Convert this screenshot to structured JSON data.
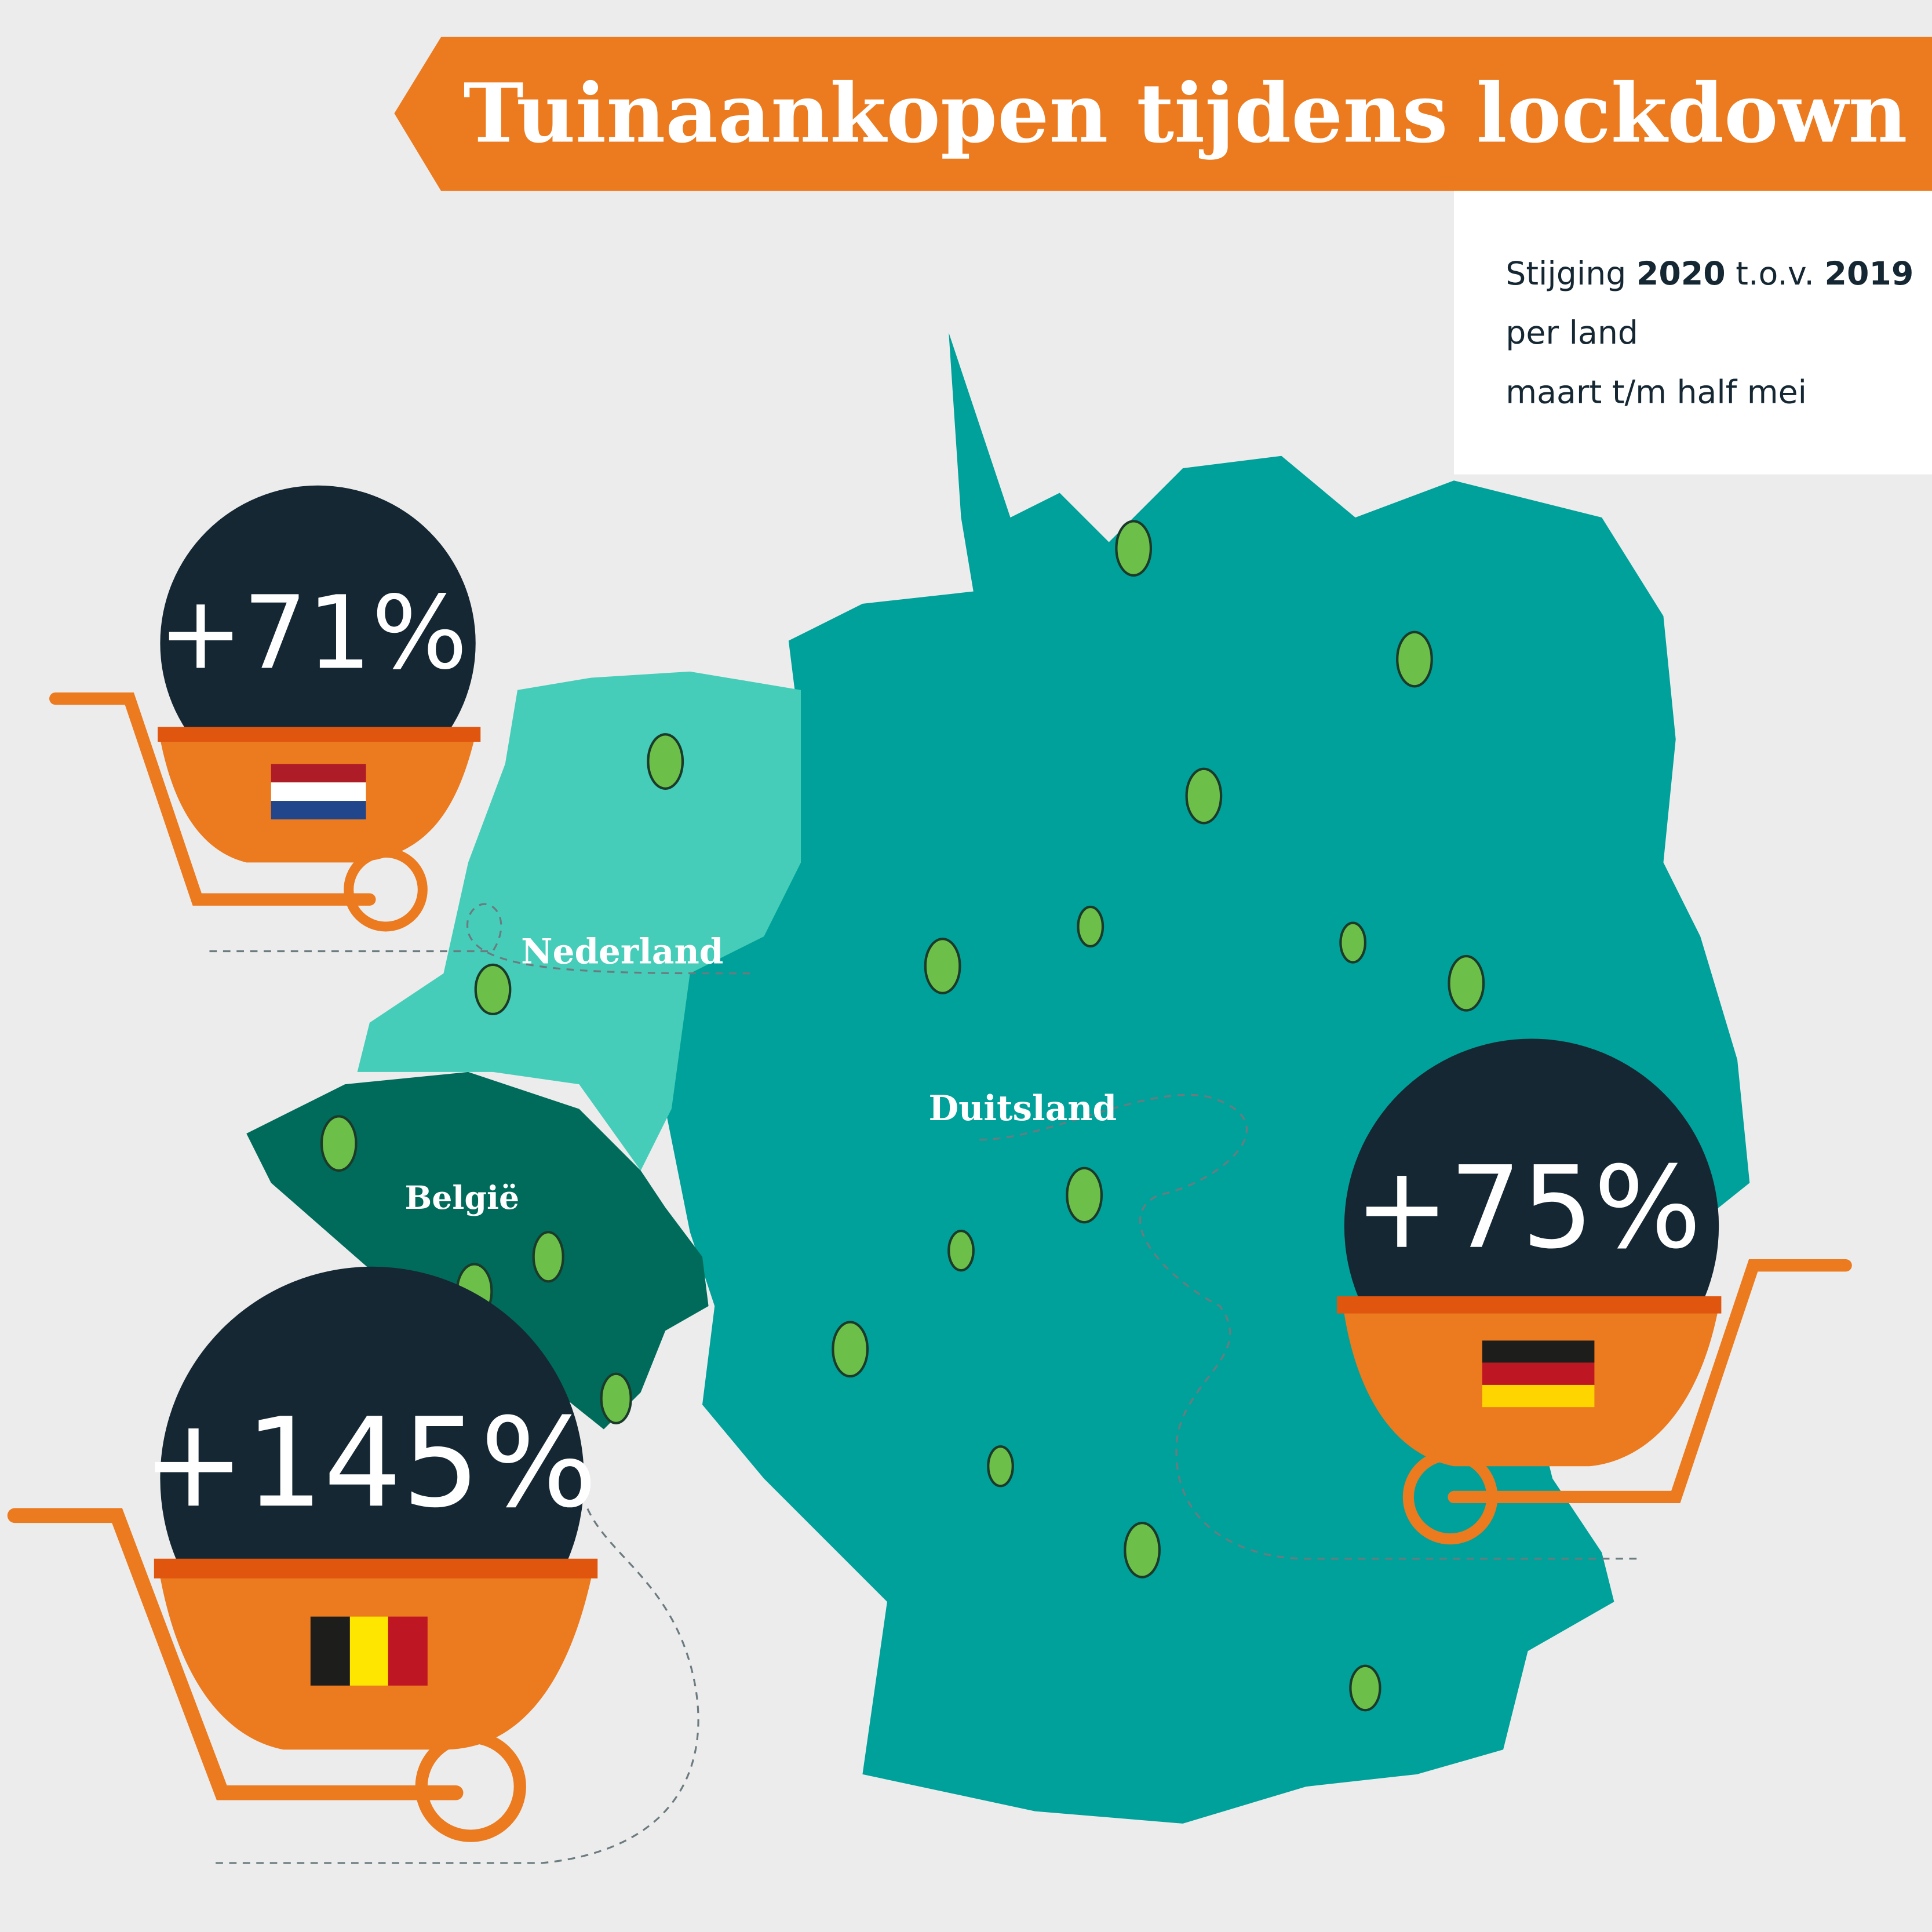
{
  "header": {
    "title": "Tuinaankopen tijdens lockdown"
  },
  "legend": {
    "line1": [
      "Stijging",
      "2020",
      "t.o.v.",
      "2019"
    ],
    "line2": "per land",
    "line3": "maart t/m half mei"
  },
  "countries": [
    {
      "name": "Nederland",
      "value": "+71%"
    },
    {
      "name": "België",
      "value": "+145%"
    },
    {
      "name": "Duitsland",
      "value": "+75%"
    }
  ]
}
